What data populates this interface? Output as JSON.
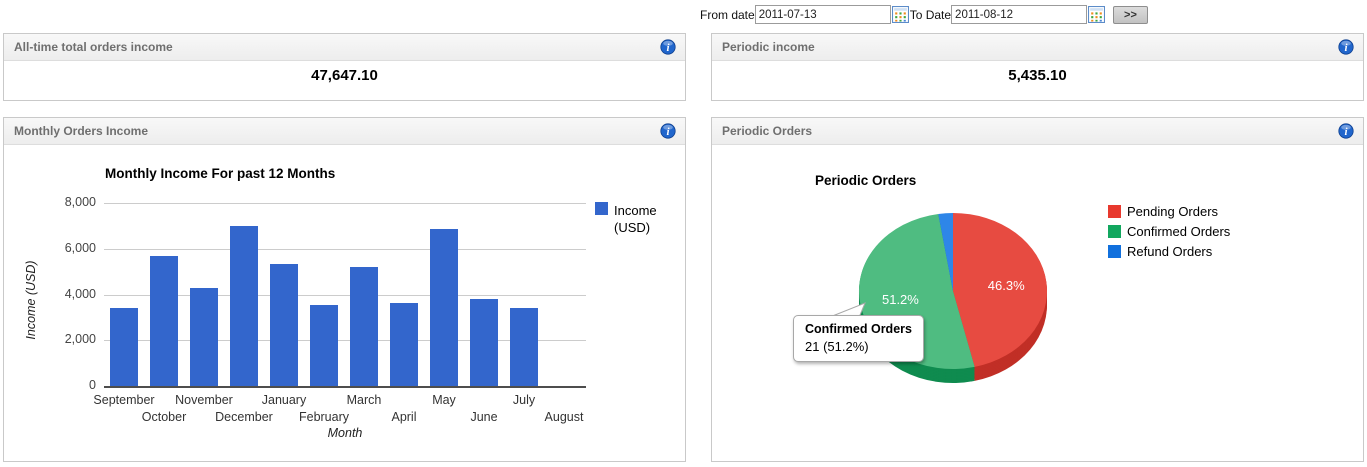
{
  "date_bar": {
    "from_label": "From date",
    "from_value": "2011-07-13",
    "to_label": "To Date",
    "to_value": "2011-08-12",
    "go_label": ">>"
  },
  "panels": {
    "all_time": {
      "title": "All-time total orders income",
      "value": "47,647.10"
    },
    "periodic_income": {
      "title": "Periodic income",
      "value": "5,435.10"
    },
    "monthly_orders": {
      "title": "Monthly Orders Income"
    },
    "periodic_orders": {
      "title": "Periodic Orders"
    }
  },
  "icons": {
    "header_icon": "info-icon",
    "date_picker_icon": "calendar-icon"
  },
  "chart_data": [
    {
      "type": "bar",
      "title": "Monthly Income For past 12 Months",
      "xlabel": "Month",
      "ylabel": "Income (USD)",
      "categories": [
        "September",
        "October",
        "November",
        "December",
        "January",
        "February",
        "March",
        "April",
        "May",
        "June",
        "July",
        "August"
      ],
      "values": [
        3400,
        5700,
        4300,
        7000,
        5350,
        3550,
        5200,
        3650,
        6850,
        3800,
        3400,
        0
      ],
      "ylim": [
        0,
        8000
      ],
      "yticks": [
        0,
        2000,
        4000,
        6000,
        8000
      ],
      "ytick_labels": [
        "0",
        "2,000",
        "4,000",
        "6,000",
        "8,000"
      ],
      "legend": [
        "Income (USD)"
      ],
      "legend_position": "right",
      "grid": true,
      "bar_color": "#3366cc"
    },
    {
      "type": "pie",
      "title": "Periodic Orders",
      "labels": [
        "Pending Orders",
        "Confirmed Orders",
        "Refund Orders"
      ],
      "percentages": [
        46.3,
        51.2,
        2.5
      ],
      "slice_labels": [
        "46.3%",
        "51.2%",
        ""
      ],
      "colors": [
        "#e8392e",
        "#12a75f",
        "#1170dd"
      ],
      "top_colors": [
        "#e74b41",
        "#4fbc81",
        "#2e86e8"
      ],
      "legend_position": "right",
      "effect": "3d",
      "tooltip": {
        "title": "Confirmed Orders",
        "value": "21 (51.2%)"
      }
    }
  ]
}
